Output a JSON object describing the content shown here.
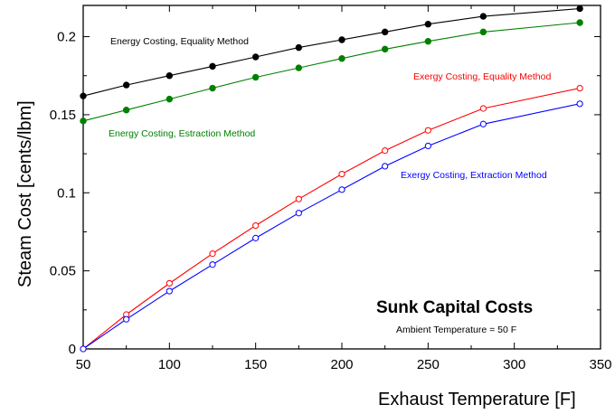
{
  "chart_data": {
    "type": "line",
    "title": "Sunk Capital Costs",
    "subtitle": "Ambient Temperature = 50 F",
    "xlabel": "Exhaust Temperature [F]",
    "ylabel": "Steam Cost [cents/lbm]",
    "xlim": [
      50,
      350
    ],
    "ylim": [
      0,
      0.22
    ],
    "xticks": [
      50,
      100,
      150,
      200,
      250,
      300,
      350
    ],
    "yticks": [
      0,
      0.05,
      0.1,
      0.15,
      0.2
    ],
    "xtick_labels": [
      "50",
      "100",
      "150",
      "200",
      "250",
      "300",
      "350"
    ],
    "ytick_labels": [
      "0",
      "0.05",
      "0.1",
      "0.15",
      "0.2"
    ],
    "grid": false,
    "legend": "none",
    "series": [
      {
        "name": "Energy Costing, Equality Method",
        "color": "#000000",
        "marker": "filled-circle",
        "x": [
          50,
          75,
          100,
          125,
          150,
          175,
          200,
          225,
          250,
          282,
          338
        ],
        "y": [
          0.162,
          0.169,
          0.175,
          0.181,
          0.187,
          0.193,
          0.198,
          0.203,
          0.208,
          0.213,
          0.218
        ]
      },
      {
        "name": "Energy Costing, Estraction Method",
        "color": "#008000",
        "marker": "filled-circle",
        "x": [
          50,
          75,
          100,
          125,
          150,
          175,
          200,
          225,
          250,
          282,
          338
        ],
        "y": [
          0.146,
          0.153,
          0.16,
          0.167,
          0.174,
          0.18,
          0.186,
          0.192,
          0.197,
          0.203,
          0.209
        ]
      },
      {
        "name": "Exergy Costing, Equality Method",
        "color": "#ff0000",
        "marker": "open-circle",
        "x": [
          50,
          75,
          100,
          125,
          150,
          175,
          200,
          225,
          250,
          282,
          338
        ],
        "y": [
          0.0,
          0.022,
          0.042,
          0.061,
          0.079,
          0.096,
          0.112,
          0.127,
          0.14,
          0.154,
          0.167
        ]
      },
      {
        "name": "Exergy Costing, Extraction Method",
        "color": "#0000ff",
        "marker": "open-circle",
        "x": [
          50,
          75,
          100,
          125,
          150,
          175,
          200,
          225,
          250,
          282,
          338
        ],
        "y": [
          0.0,
          0.019,
          0.037,
          0.054,
          0.071,
          0.087,
          0.102,
          0.117,
          0.13,
          0.144,
          0.157
        ]
      }
    ]
  }
}
